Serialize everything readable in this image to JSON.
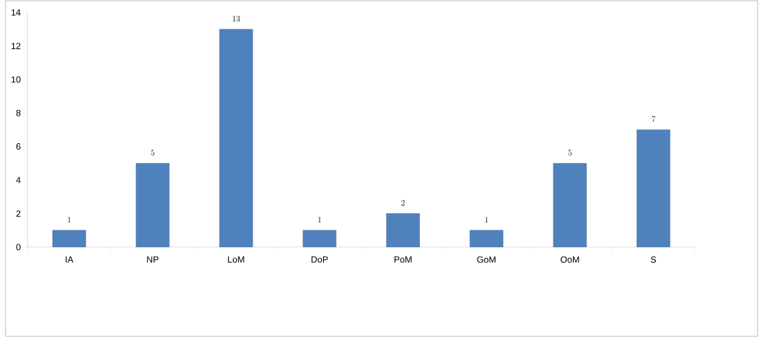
{
  "chart_data": {
    "type": "bar",
    "categories": [
      "IA",
      "NP",
      "LoM",
      "DoP",
      "PoM",
      "GoM",
      "OoM",
      "S"
    ],
    "values": [
      1,
      5,
      13,
      1,
      2,
      1,
      5,
      7
    ],
    "color": "#4f81bd",
    "ylim": [
      0,
      14
    ],
    "yticks": [
      0,
      2,
      4,
      6,
      8,
      10,
      12,
      14
    ],
    "data_labels": true
  }
}
